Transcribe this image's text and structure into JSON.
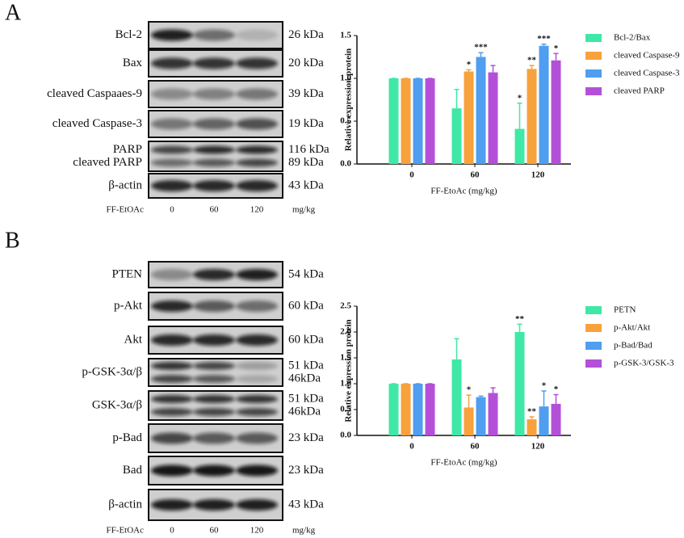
{
  "figure": {
    "panels": [
      {
        "label": "A",
        "blot": {
          "rows": [
            {
              "names": [
                "Bcl-2"
              ],
              "sizes": [
                "26 kDa"
              ]
            },
            {
              "names": [
                "Bax"
              ],
              "sizes": [
                "20 kDa"
              ]
            },
            {
              "names": [
                "cleaved Caspaaes-9"
              ],
              "sizes": [
                "39 kDa"
              ]
            },
            {
              "names": [
                "cleaved Caspase-3"
              ],
              "sizes": [
                "19 kDa"
              ]
            },
            {
              "names": [
                "PARP",
                "cleaved PARP"
              ],
              "sizes": [
                "116 kDa",
                "89 kDa"
              ]
            },
            {
              "names": [
                "β-actin"
              ],
              "sizes": [
                "43 kDa"
              ]
            }
          ],
          "treatment": "FF-EtOAc",
          "lanes": [
            "0",
            "60",
            "120"
          ],
          "unit": "mg/kg"
        }
      },
      {
        "label": "B",
        "blot": {
          "rows": [
            {
              "names": [
                "PTEN"
              ],
              "sizes": [
                "54 kDa"
              ]
            },
            {
              "names": [
                "p-Akt"
              ],
              "sizes": [
                "60 kDa"
              ]
            },
            {
              "names": [
                "Akt"
              ],
              "sizes": [
                "60 kDa"
              ]
            },
            {
              "names": [
                "p-GSK-3α/β"
              ],
              "sizes": [
                "51 kDa",
                "46kDa"
              ]
            },
            {
              "names": [
                "GSK-3α/β"
              ],
              "sizes": [
                "51 kDa",
                "46kDa"
              ]
            },
            {
              "names": [
                "p-Bad"
              ],
              "sizes": [
                "23 kDa"
              ]
            },
            {
              "names": [
                "Bad"
              ],
              "sizes": [
                "23 kDa"
              ]
            },
            {
              "names": [
                "β-actin"
              ],
              "sizes": [
                "43 kDa"
              ]
            }
          ],
          "treatment": "FF-EtOAc",
          "lanes": [
            "0",
            "60",
            "120"
          ],
          "unit": "mg/kg"
        }
      }
    ]
  },
  "chart_data": [
    {
      "type": "bar",
      "x_label": "FF-EtoAc (mg/kg)",
      "y_label": "Relative expression protein",
      "categories": [
        "0",
        "60",
        "120"
      ],
      "ylim": [
        0,
        1.5
      ],
      "yticks": [
        {
          "value": 0,
          "label": "0.0"
        },
        {
          "value": 0.5,
          "label": "0.5"
        },
        {
          "value": 1,
          "label": "1.0"
        },
        {
          "value": 1.5,
          "label": "1.5"
        }
      ],
      "series": [
        {
          "name": "Bcl-2/Bax",
          "color": "#3fe8a6",
          "values": [
            1.0,
            0.65,
            0.41
          ],
          "errors": [
            0,
            0.22,
            0.3
          ],
          "annotations": [
            null,
            null,
            "*"
          ]
        },
        {
          "name": "cleaved Caspase-9",
          "color": "#f7a23c",
          "values": [
            1.0,
            1.08,
            1.11
          ],
          "errors": [
            0,
            0.02,
            0.04
          ],
          "annotations": [
            null,
            "*",
            "**"
          ]
        },
        {
          "name": "cleaved Caspase-3",
          "color": "#4f9ef0",
          "values": [
            1.0,
            1.25,
            1.38
          ],
          "errors": [
            0,
            0.05,
            0.02
          ],
          "annotations": [
            null,
            "***",
            "***"
          ]
        },
        {
          "name": "cleaved PARP",
          "color": "#b450d8",
          "values": [
            1.0,
            1.07,
            1.21
          ],
          "errors": [
            0,
            0.08,
            0.08
          ],
          "annotations": [
            null,
            null,
            "*"
          ]
        }
      ]
    },
    {
      "type": "bar",
      "x_label": "FF-EtoAc (mg/kg)",
      "y_label": "Relative expression protein",
      "categories": [
        "0",
        "60",
        "120"
      ],
      "ylim": [
        0,
        2.5
      ],
      "yticks": [
        {
          "value": 0,
          "label": "0.0"
        },
        {
          "value": 0.5,
          "label": "0.5"
        },
        {
          "value": 1,
          "label": "1.0"
        },
        {
          "value": 1.5,
          "label": "1.5"
        },
        {
          "value": 2,
          "label": "2.0"
        },
        {
          "value": 2.5,
          "label": "2.5"
        }
      ],
      "series": [
        {
          "name": "PETN",
          "color": "#3fe8a6",
          "values": [
            1.0,
            1.47,
            2.0
          ],
          "errors": [
            0,
            0.4,
            0.15
          ],
          "annotations": [
            null,
            null,
            "**"
          ]
        },
        {
          "name": "p-Akt/Akt",
          "color": "#f7a23c",
          "values": [
            1.0,
            0.54,
            0.31
          ],
          "errors": [
            0,
            0.24,
            0.05
          ],
          "annotations": [
            null,
            "*",
            "**"
          ]
        },
        {
          "name": "p-Bad/Bad",
          "color": "#4f9ef0",
          "values": [
            1.0,
            0.74,
            0.56
          ],
          "errors": [
            0,
            0.02,
            0.3
          ],
          "annotations": [
            null,
            null,
            "*"
          ]
        },
        {
          "name": "p-GSK-3/GSK-3",
          "color": "#b450d8",
          "values": [
            1.0,
            0.82,
            0.61
          ],
          "errors": [
            0,
            0.1,
            0.18
          ],
          "annotations": [
            null,
            null,
            "*"
          ]
        }
      ]
    }
  ]
}
